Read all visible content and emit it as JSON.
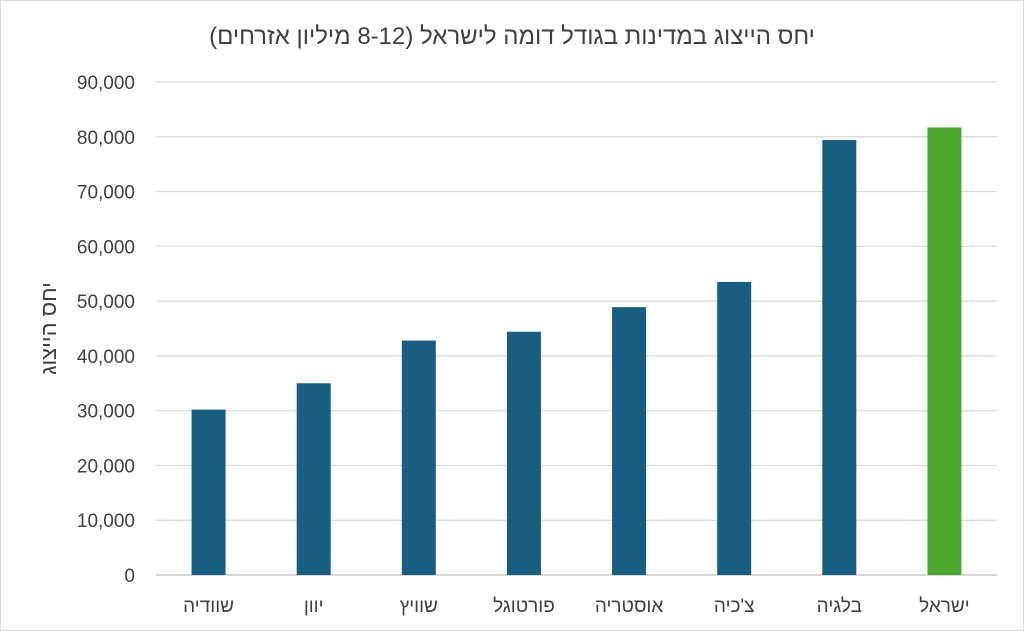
{
  "chart_data": {
    "type": "bar",
    "title": "יחס הייצוג במדינות בגודל דומה לישראל (8-12 מיליון אזרחים)",
    "ylabel": "יחס הייצוג",
    "xlabel": "",
    "ylim": [
      0,
      90000
    ],
    "yticks": [
      0,
      10000,
      20000,
      30000,
      40000,
      50000,
      60000,
      70000,
      80000,
      90000
    ],
    "ytick_labels": [
      "0",
      "10,000",
      "20,000",
      "30,000",
      "40,000",
      "50,000",
      "60,000",
      "70,000",
      "80,000",
      "90,000"
    ],
    "grid": true,
    "legend": "none",
    "categories": [
      "שוודיה",
      "יוון",
      "שוויץ",
      "פורטוגל",
      "אוסטריה",
      "צ'כיה",
      "בלגיה",
      "ישראל"
    ],
    "values": [
      30200,
      35000,
      42800,
      44400,
      48900,
      53500,
      79400,
      81700
    ],
    "colors": [
      "#175e80",
      "#175e80",
      "#175e80",
      "#175e80",
      "#175e80",
      "#175e80",
      "#175e80",
      "#4ea72e"
    ]
  }
}
